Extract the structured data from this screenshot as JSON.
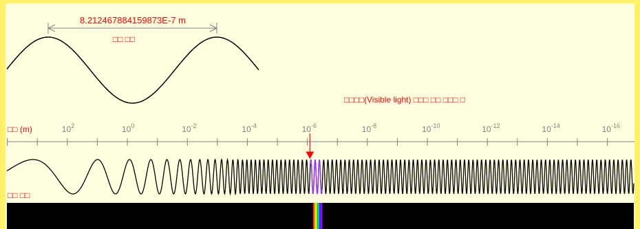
{
  "colors": {
    "background": "#ffffe0",
    "frame": "#fff26a",
    "accent_red": "#ff0000",
    "axis_gray": "#808080",
    "wave": "#000000",
    "spectrum_bg": "#000000"
  },
  "wavelength_display": {
    "value": "8.212467884159873E-7 m",
    "caption": "□□ □□"
  },
  "visible_light_label": "□□□□(Visible light) □□□ □□ □□□ □",
  "axis": {
    "unit_label": "□□ (m)",
    "base": "10",
    "exponents": [
      "2",
      "0",
      "-2",
      "-4",
      "-6",
      "-8",
      "-10",
      "-12",
      "-14",
      "-16"
    ]
  },
  "wave_section_label": "□□ □□",
  "marker": {
    "wavelength_exponent": -6.0856
  }
}
